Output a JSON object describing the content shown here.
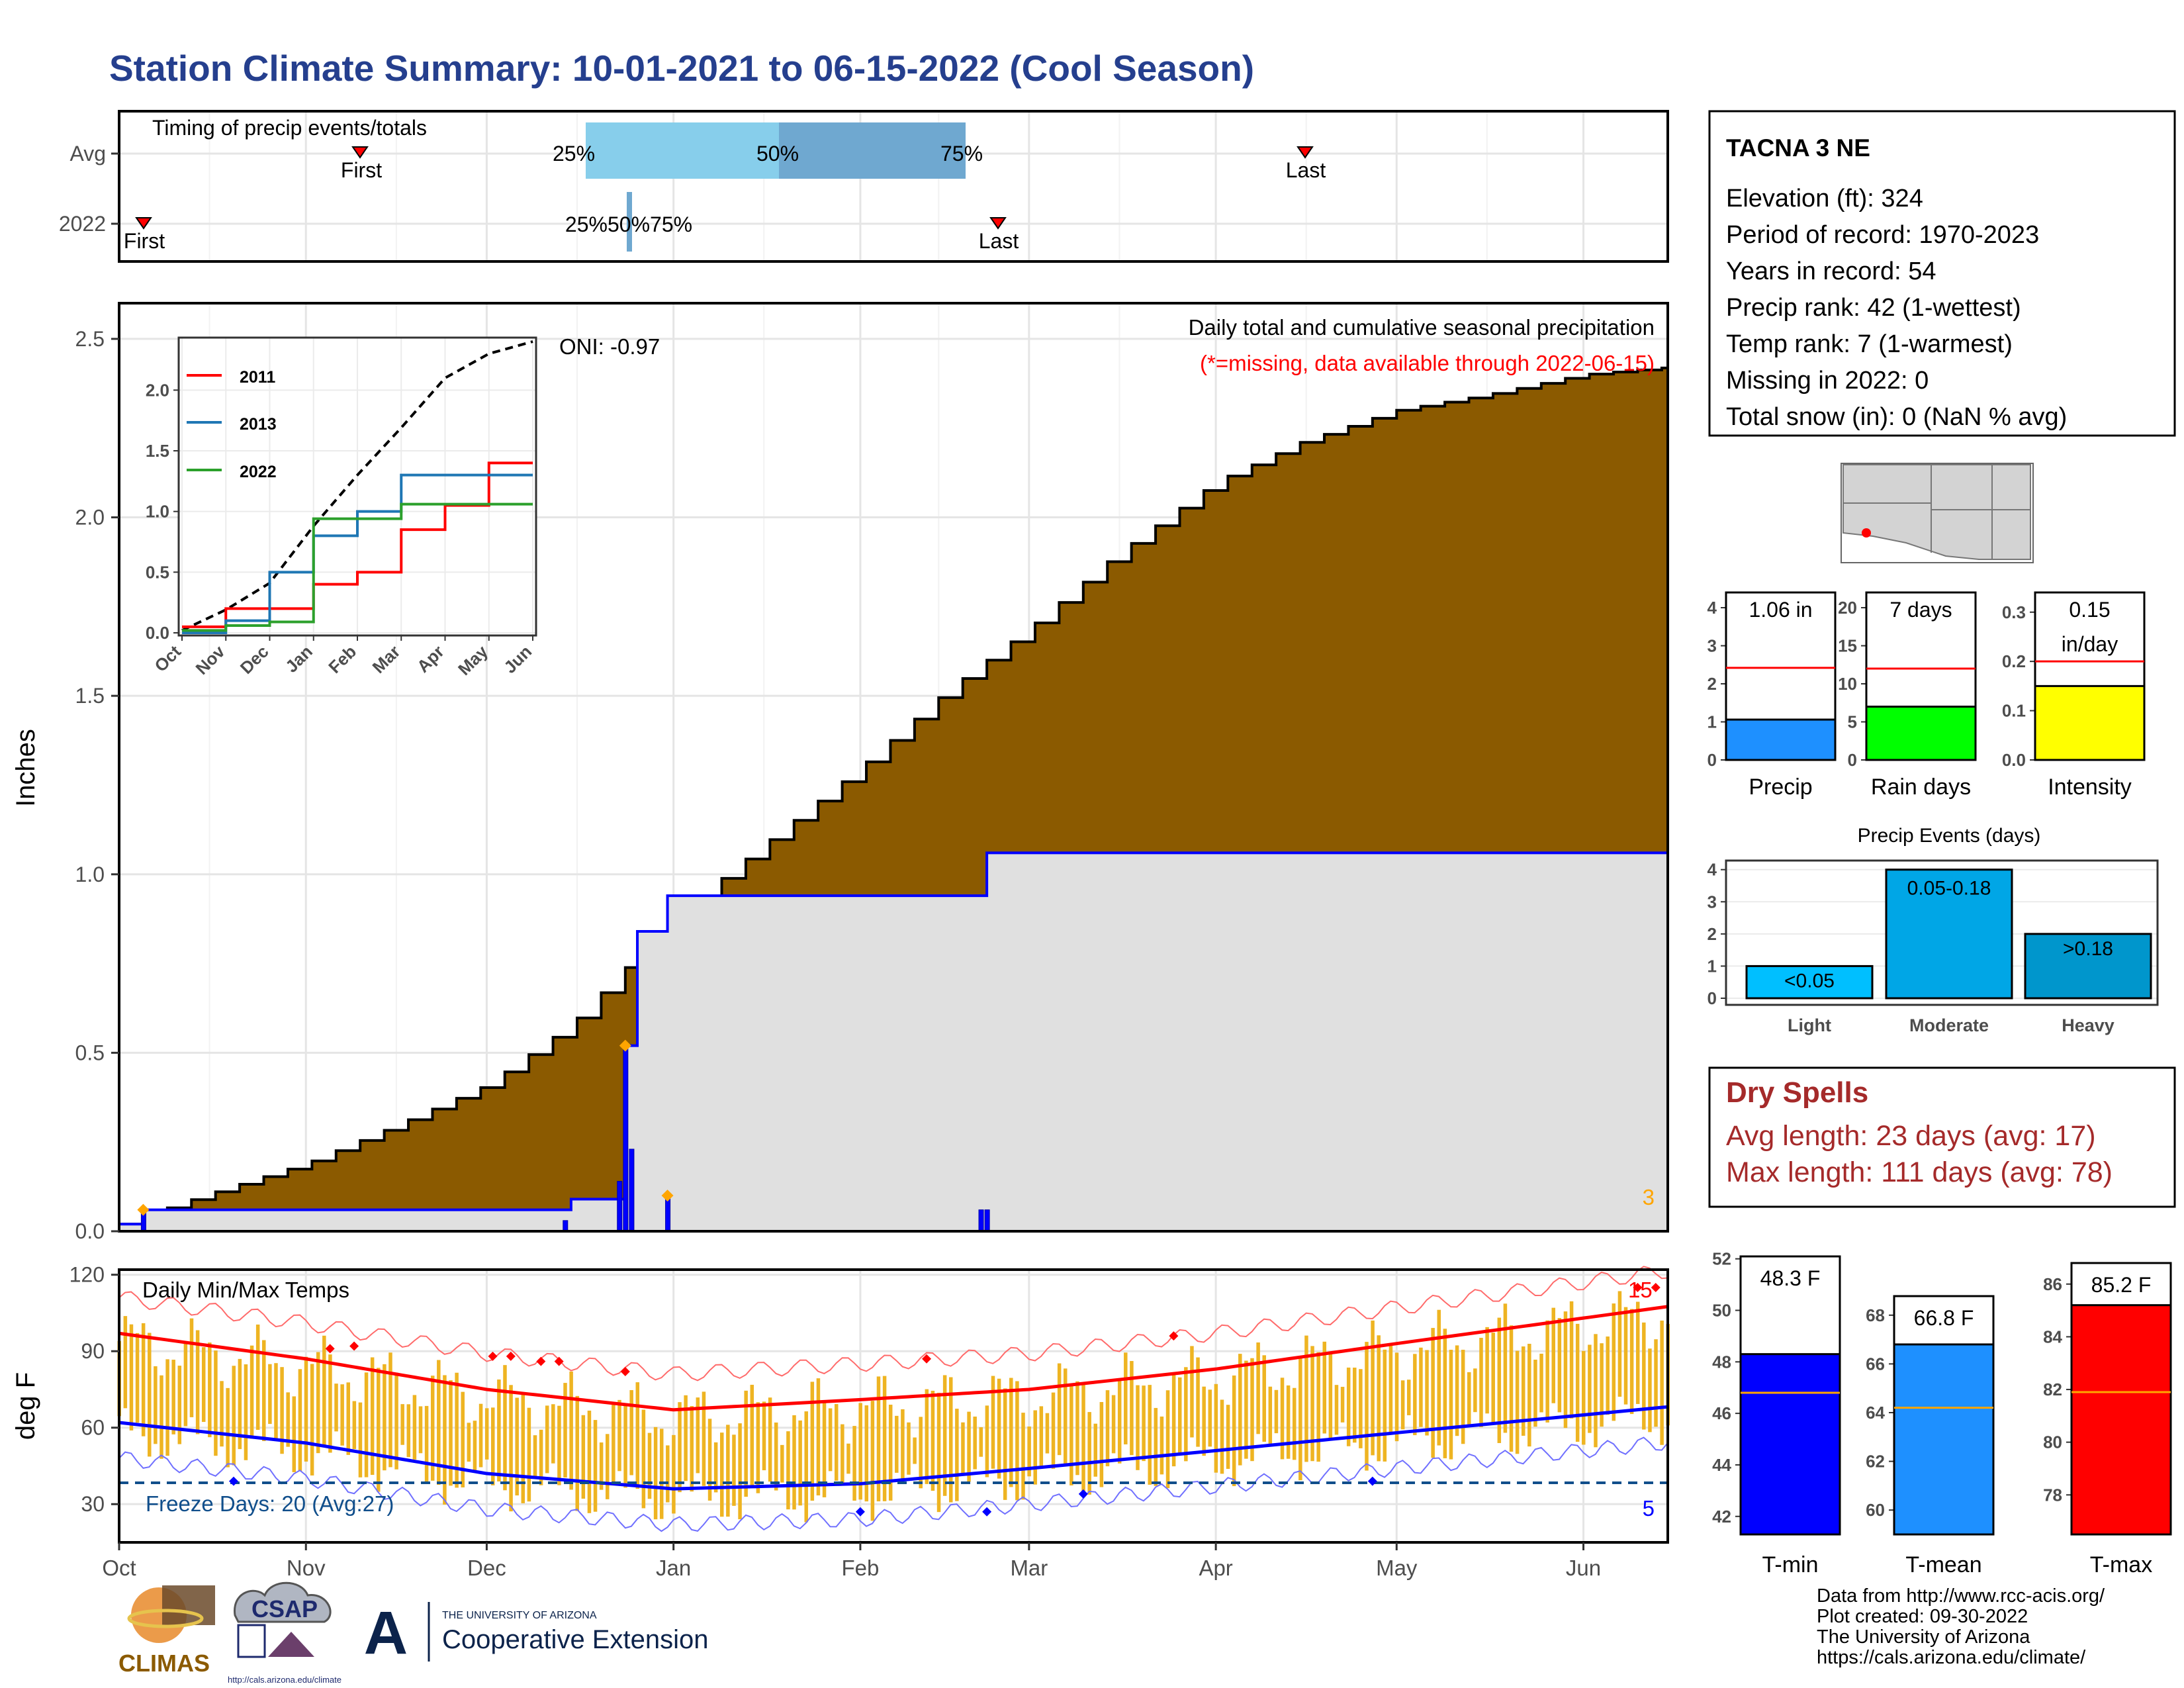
{
  "title": "Station Climate Summary: 10-01-2021 to 06-15-2022 (Cool Season)",
  "timing_panel": {
    "label": "Timing of precip events/totals",
    "rows": [
      "Avg",
      "2022"
    ],
    "avg_first": "First",
    "avg_last": "Last",
    "avg_pct": [
      "25%",
      "50%",
      "75%"
    ],
    "y2022_first": "First",
    "y2022_last": "Last",
    "y2022_pct": "25%50%75%"
  },
  "main_panel": {
    "ylabel": "Inches",
    "yticks": [
      "0.0",
      "0.5",
      "1.0",
      "1.5",
      "2.0",
      "2.5"
    ],
    "header": "Daily total and cumulative seasonal precipitation",
    "missing_note": "(*=missing, data available through 2022-06-15)",
    "oni": "ONI: -0.97",
    "corner_count": "3"
  },
  "inset": {
    "legend": [
      "2011",
      "2013",
      "2022"
    ],
    "yticks": [
      "0.0",
      "0.5",
      "1.0",
      "1.5",
      "2.0"
    ],
    "months": [
      "Oct",
      "Nov",
      "Dec",
      "Jan",
      "Feb",
      "Mar",
      "Apr",
      "May",
      "Jun"
    ]
  },
  "temp_panel": {
    "label": "Daily Min/Max Temps",
    "ylabel": "deg F",
    "yticks": [
      "30",
      "60",
      "90",
      "120"
    ],
    "freeze": "Freeze Days: 20 (Avg:27)",
    "hot_count": "15",
    "cold_count": "5"
  },
  "x_months": [
    "Oct",
    "Nov",
    "Dec",
    "Jan",
    "Feb",
    "Mar",
    "Apr",
    "May",
    "Jun"
  ],
  "station": {
    "name": "TACNA 3 NE",
    "lines": [
      "Elevation (ft): 324",
      "Period of record: 1970-2023",
      "Years in record: 54",
      "Precip rank: 42 (1-wettest)",
      "Temp rank: 7 (1-warmest)",
      "Missing in 2022: 0",
      "Total snow (in): 0 (NaN % avg)"
    ]
  },
  "mini_bars": [
    {
      "label": "Precip",
      "value_text": "1.06 in",
      "yticks": [
        "0",
        "1",
        "2",
        "3",
        "4"
      ],
      "color": "#1e90ff"
    },
    {
      "label": "Rain days",
      "value_text": "7 days",
      "yticks": [
        "0",
        "5",
        "10",
        "15",
        "20"
      ],
      "color": "#00ff00"
    },
    {
      "label": "Intensity",
      "value_text": "0.15",
      "value_text2": "in/day",
      "yticks": [
        "0.0",
        "0.1",
        "0.2",
        "0.3"
      ],
      "color": "#ffff00"
    }
  ],
  "events": {
    "title": "Precip Events (days)",
    "yticks": [
      "0",
      "1",
      "2",
      "3",
      "4"
    ],
    "bars": [
      {
        "cat": "Light",
        "inner": "<0.05"
      },
      {
        "cat": "Moderate",
        "inner": "0.05-0.18"
      },
      {
        "cat": "Heavy",
        "inner": ">0.18"
      }
    ]
  },
  "dry": {
    "title": "Dry Spells",
    "avg": "Avg length: 23 days (avg: 17)",
    "max": "Max length: 111 days (avg: 78)"
  },
  "temp_bars": [
    {
      "label": "T-min",
      "value_text": "48.3 F",
      "yticks": [
        "42",
        "44",
        "46",
        "48",
        "50",
        "52"
      ],
      "color": "#0000ff"
    },
    {
      "label": "T-mean",
      "value_text": "66.8 F",
      "yticks": [
        "60",
        "62",
        "64",
        "66",
        "68"
      ],
      "color": "#1e90ff"
    },
    {
      "label": "T-max",
      "value_text": "85.2 F",
      "yticks": [
        "78",
        "80",
        "82",
        "84",
        "86"
      ],
      "color": "#ff0000"
    }
  ],
  "footer": {
    "lines": [
      "Data from http://www.rcc-acis.org/",
      "Plot created: 09-30-2022",
      "The University of Arizona",
      "https://cals.arizona.edu/climate/"
    ],
    "logo_climas": "CLIMAS",
    "logo_csap": "CSAP",
    "logo_csap_url": "http://cals.arizona.edu/climate",
    "ua_top": "THE UNIVERSITY OF ARIZONA",
    "ua_bottom": "Cooperative Extension",
    "ua_letter": "A"
  },
  "colors": {
    "title": "#253f8e",
    "cum_fill": "#8b5a00",
    "obs_fill": "#e0e0e0",
    "daily_bar": "#0000ff",
    "tmax": "#ff0000",
    "tmin": "#0000ff",
    "temp_bar": "#eeb422",
    "dry": "#a52a2a"
  },
  "chart_data": [
    {
      "type": "area",
      "title": "Daily total and cumulative seasonal precipitation",
      "ylabel": "Inches",
      "ylim": [
        0,
        2.6
      ],
      "x_range": [
        "2021-10-01",
        "2022-06-15"
      ],
      "series": [
        {
          "name": "cumulative average",
          "x": [
            "2021-10-01",
            "2021-10-15",
            "2021-11-01",
            "2021-11-15",
            "2021-12-01",
            "2021-12-15",
            "2022-01-01",
            "2022-01-15",
            "2022-02-01",
            "2022-02-15",
            "2022-03-01",
            "2022-03-15",
            "2022-04-01",
            "2022-04-15",
            "2022-05-01",
            "2022-05-15",
            "2022-06-01",
            "2022-06-15"
          ],
          "values": [
            0.02,
            0.1,
            0.19,
            0.29,
            0.41,
            0.58,
            0.88,
            1.07,
            1.3,
            1.51,
            1.69,
            1.89,
            2.1,
            2.21,
            2.3,
            2.34,
            2.4,
            2.42
          ]
        },
        {
          "name": "cumulative 2022",
          "x": [
            "2021-10-01",
            "2021-10-05",
            "2021-12-15",
            "2021-12-24",
            "2021-12-26",
            "2021-12-31",
            "2022-02-20",
            "2022-02-22",
            "2022-06-15"
          ],
          "values": [
            0.02,
            0.06,
            0.09,
            0.52,
            0.84,
            0.94,
            0.94,
            1.06,
            1.06
          ]
        }
      ],
      "daily_bars": {
        "x": [
          "2021-10-05",
          "2021-12-14",
          "2021-12-23",
          "2021-12-24",
          "2021-12-25",
          "2021-12-31",
          "2022-02-21",
          "2022-02-22"
        ],
        "values": [
          0.06,
          0.03,
          0.14,
          0.52,
          0.23,
          0.1,
          0.06,
          0.06
        ]
      }
    },
    {
      "type": "line",
      "title": "inset cumulative precipitation",
      "ylim": [
        0,
        2.4
      ],
      "x": [
        "Oct",
        "Nov",
        "Dec",
        "Jan",
        "Feb",
        "Mar",
        "Apr",
        "May",
        "Jun"
      ],
      "series": [
        {
          "name": "2011",
          "values": [
            0.05,
            0.2,
            0.2,
            0.4,
            0.5,
            0.85,
            1.05,
            1.4,
            1.4
          ]
        },
        {
          "name": "2013",
          "values": [
            0.0,
            0.1,
            0.5,
            0.8,
            1.0,
            1.3,
            1.3,
            1.3,
            1.3
          ]
        },
        {
          "name": "2022",
          "values": [
            0.02,
            0.06,
            0.09,
            0.94,
            0.94,
            1.06,
            1.06,
            1.06,
            1.06
          ]
        },
        {
          "values": [
            0.02,
            0.19,
            0.41,
            0.88,
            1.3,
            1.69,
            2.1,
            2.3,
            2.4
          ]
        }
      ]
    },
    {
      "type": "line",
      "title": "Daily Min/Max Temps",
      "ylabel": "deg F",
      "ylim": [
        15,
        122
      ],
      "x": [
        "Oct",
        "Nov",
        "Dec",
        "Jan",
        "Feb",
        "Mar",
        "Apr",
        "May",
        "Jun"
      ],
      "series": [
        {
          "name": "Tmax normal",
          "values": [
            97,
            87,
            75,
            67,
            71,
            75,
            83,
            93,
            103
          ]
        },
        {
          "name": "Tmin normal",
          "values": [
            62,
            54,
            42,
            36,
            38,
            44,
            51,
            58,
            65
          ]
        }
      ]
    },
    {
      "type": "bar",
      "title": "Precip Events (days)",
      "categories": [
        "Light",
        "Moderate",
        "Heavy"
      ],
      "values": [
        1,
        4,
        2
      ],
      "ylim": [
        0,
        4.2
      ]
    },
    {
      "type": "bar",
      "categories": [
        "Precip",
        "Rain days",
        "Intensity"
      ],
      "values": [
        1.06,
        7,
        0.15
      ],
      "averages": [
        2.42,
        12,
        0.2
      ]
    },
    {
      "type": "bar",
      "categories": [
        "T-min",
        "T-mean",
        "T-max"
      ],
      "values": [
        48.3,
        66.8,
        85.2
      ],
      "averages": [
        46.8,
        64.2,
        81.9
      ]
    }
  ]
}
